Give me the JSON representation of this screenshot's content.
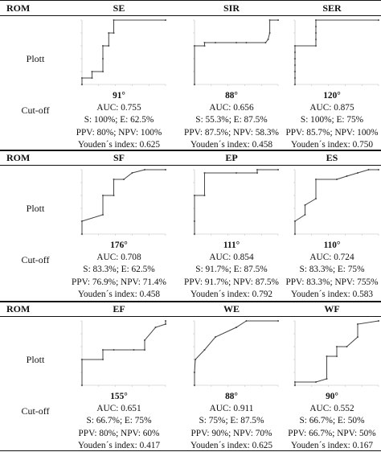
{
  "table": {
    "rom_label": "ROM",
    "plott_label": "Plott",
    "cutoff_label": "Cut-off",
    "sections": [
      {
        "columns": [
          {
            "name": "SE",
            "cutoff": "91°",
            "auc": "AUC: 0.755",
            "se": "S: 100%; E: 62.5%",
            "pv": "PPV: 80%; NPV: 100%",
            "youden": "Youden´s index: 0.625",
            "roc": [
              [
                0,
                0
              ],
              [
                0,
                0.1
              ],
              [
                0.12,
                0.1
              ],
              [
                0.12,
                0.2
              ],
              [
                0.25,
                0.2
              ],
              [
                0.25,
                0.4
              ],
              [
                0.25,
                0.6
              ],
              [
                0.32,
                0.6
              ],
              [
                0.32,
                0.8
              ],
              [
                0.38,
                0.8
              ],
              [
                0.38,
                1
              ],
              [
                1,
                1
              ]
            ]
          },
          {
            "name": "SIR",
            "cutoff": "88°",
            "auc": "AUC: 0.656",
            "se": "S: 55.3%; E: 87.5%",
            "pv": "PPV: 87.5%; NPV: 58.3%",
            "youden": "Youden´s index: 0.458",
            "roc": [
              [
                0,
                0
              ],
              [
                0,
                0.6
              ],
              [
                0.12,
                0.6
              ],
              [
                0.12,
                0.65
              ],
              [
                0.25,
                0.65
              ],
              [
                0.5,
                0.65
              ],
              [
                0.62,
                0.65
              ],
              [
                0.85,
                0.65
              ],
              [
                0.88,
                0.7
              ],
              [
                0.9,
                0.8
              ],
              [
                0.9,
                1
              ],
              [
                1,
                1
              ]
            ]
          },
          {
            "name": "SER",
            "cutoff": "120°",
            "auc": "AUC: 0.875",
            "se": "S: 100%; E: 75%",
            "pv": "PPV: 85.7%; NPV: 100%",
            "youden": "Youden´s index: 0.750",
            "roc": [
              [
                0,
                0
              ],
              [
                0,
                0.1
              ],
              [
                0,
                0.2
              ],
              [
                0,
                0.3
              ],
              [
                0,
                0.4
              ],
              [
                0,
                0.5
              ],
              [
                0,
                0.6
              ],
              [
                0.25,
                0.6
              ],
              [
                0.25,
                0.7
              ],
              [
                0.25,
                0.8
              ],
              [
                0.25,
                0.9
              ],
              [
                0.25,
                1
              ],
              [
                1,
                1
              ]
            ]
          }
        ]
      },
      {
        "columns": [
          {
            "name": "SF",
            "cutoff": "176°",
            "auc": "AUC: 0.708",
            "se": "S: 83.3%; E: 62.5%",
            "pv": "PPV: 76.9%; NPV: 71.4%",
            "youden": "Youden´s index: 0.458",
            "roc": [
              [
                0,
                0
              ],
              [
                0,
                0.2
              ],
              [
                0.25,
                0.3
              ],
              [
                0.25,
                0.6
              ],
              [
                0.38,
                0.6
              ],
              [
                0.38,
                0.85
              ],
              [
                0.5,
                0.85
              ],
              [
                0.6,
                0.95
              ],
              [
                0.75,
                1
              ],
              [
                1,
                1
              ]
            ]
          },
          {
            "name": "EP",
            "cutoff": "111°",
            "auc": "AUC: 0.854",
            "se": "S: 91.7%; E: 87.5%",
            "pv": "PPV: 91.7%; NPV: 87.5%",
            "youden": "Youden´s index: 0.792",
            "roc": [
              [
                0,
                0
              ],
              [
                0,
                0.2
              ],
              [
                0,
                0.6
              ],
              [
                0.12,
                0.6
              ],
              [
                0.12,
                0.95
              ],
              [
                0.5,
                0.95
              ],
              [
                0.75,
                0.95
              ],
              [
                0.75,
                1
              ],
              [
                1,
                1
              ]
            ]
          },
          {
            "name": "ES",
            "cutoff": "110°",
            "auc": "AUC: 0.724",
            "se": "S: 83.3%; E: 75%",
            "pv": "PPV: 83.3%; NPV: 755%",
            "youden": "Youden´s index: 0.583",
            "roc": [
              [
                0,
                0
              ],
              [
                0,
                0.2
              ],
              [
                0.12,
                0.3
              ],
              [
                0.12,
                0.45
              ],
              [
                0.25,
                0.55
              ],
              [
                0.25,
                0.85
              ],
              [
                0.5,
                0.85
              ],
              [
                0.62,
                0.9
              ],
              [
                0.75,
                0.95
              ],
              [
                0.88,
                1
              ],
              [
                1,
                1
              ]
            ]
          }
        ]
      },
      {
        "columns": [
          {
            "name": "EF",
            "cutoff": "155°",
            "auc": "AUC: 0.651",
            "se": "S: 66.7%; E: 75%",
            "pv": "PPV: 80%; NPV: 60%",
            "youden": "Youden´s index: 0.417",
            "roc": [
              [
                0,
                0
              ],
              [
                0,
                0.4
              ],
              [
                0.25,
                0.4
              ],
              [
                0.25,
                0.55
              ],
              [
                0.38,
                0.55
              ],
              [
                0.62,
                0.55
              ],
              [
                0.75,
                0.55
              ],
              [
                0.75,
                0.7
              ],
              [
                0.88,
                0.9
              ],
              [
                1,
                0.95
              ],
              [
                1,
                1
              ]
            ]
          },
          {
            "name": "WE",
            "cutoff": "88°",
            "auc": "AUC: 0.911",
            "se": "S: 75%; E: 87.5%",
            "pv": "PPV: 90%; NPV: 70%",
            "youden": "Youden´s index: 0.625",
            "roc": [
              [
                0,
                0
              ],
              [
                0,
                0.2
              ],
              [
                0.01,
                0.4
              ],
              [
                0.12,
                0.55
              ],
              [
                0.25,
                0.75
              ],
              [
                0.5,
                0.9
              ],
              [
                0.62,
                1
              ],
              [
                1,
                1
              ]
            ]
          },
          {
            "name": "WF",
            "cutoff": "90°",
            "auc": "AUC: 0.552",
            "se": "S: 66.7%; E: 50%",
            "pv": "PPV: 66.7%; NPV: 50%",
            "youden": "Youden´s index: 0.167",
            "roc": [
              [
                0,
                0
              ],
              [
                0,
                0.05
              ],
              [
                0.25,
                0.05
              ],
              [
                0.38,
                0.1
              ],
              [
                0.38,
                0.45
              ],
              [
                0.5,
                0.45
              ],
              [
                0.5,
                0.6
              ],
              [
                0.62,
                0.6
              ],
              [
                0.75,
                0.75
              ],
              [
                0.75,
                0.95
              ],
              [
                1,
                1
              ]
            ]
          }
        ]
      }
    ]
  }
}
